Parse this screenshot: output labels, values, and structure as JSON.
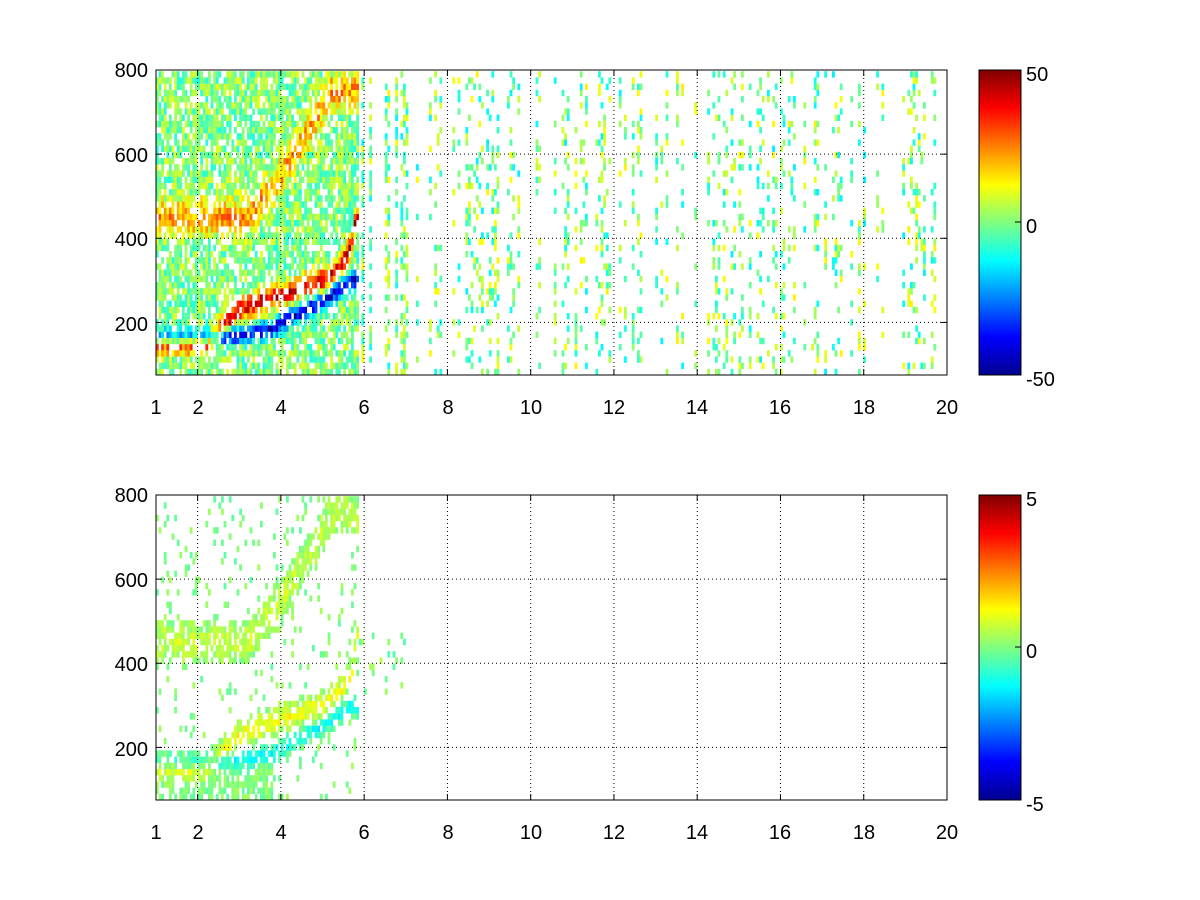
{
  "chart_data": [
    {
      "type": "heatmap",
      "title": "",
      "xlabel": "",
      "ylabel": "",
      "xlim": [
        1,
        20
      ],
      "ylim": [
        75,
        800
      ],
      "x_ticks": [
        "1",
        "2",
        "4",
        "6",
        "8",
        "10",
        "12",
        "14",
        "16",
        "18",
        "20"
      ],
      "y_ticks": [
        "200",
        "400",
        "600",
        "800"
      ],
      "grid": true,
      "colorbar": {
        "min": -50,
        "max": 50,
        "ticks": [
          "50",
          "0",
          "-50"
        ],
        "colormap": "jet"
      },
      "description_values": {
        "ridge_positive": [
          [
            2.2,
            150
          ],
          [
            3.0,
            230
          ],
          [
            3.5,
            250
          ],
          [
            4.0,
            265
          ],
          [
            4.5,
            285
          ],
          [
            5.0,
            300
          ],
          [
            5.4,
            330
          ],
          [
            5.7,
            380
          ],
          [
            5.8,
            450
          ]
        ],
        "band_negative": [
          [
            2.0,
            165
          ],
          [
            3.0,
            170
          ],
          [
            3.8,
            185
          ],
          [
            4.3,
            215
          ],
          [
            4.8,
            240
          ],
          [
            5.3,
            270
          ],
          [
            5.7,
            300
          ]
        ],
        "upper_positive_arc": [
          [
            3.2,
            450
          ],
          [
            3.8,
            520
          ],
          [
            4.3,
            600
          ],
          [
            4.8,
            680
          ],
          [
            5.2,
            750
          ]
        ]
      }
    },
    {
      "type": "heatmap",
      "title": "",
      "xlabel": "",
      "ylabel": "",
      "xlim": [
        1,
        20
      ],
      "ylim": [
        75,
        800
      ],
      "x_ticks": [
        "1",
        "2",
        "4",
        "6",
        "8",
        "10",
        "12",
        "14",
        "16",
        "18",
        "20"
      ],
      "y_ticks": [
        "200",
        "400",
        "600",
        "800"
      ],
      "grid": true,
      "colorbar": {
        "min": -5,
        "max": 5,
        "ticks": [
          "5",
          "0",
          "-5"
        ],
        "colormap": "jet"
      }
    }
  ]
}
